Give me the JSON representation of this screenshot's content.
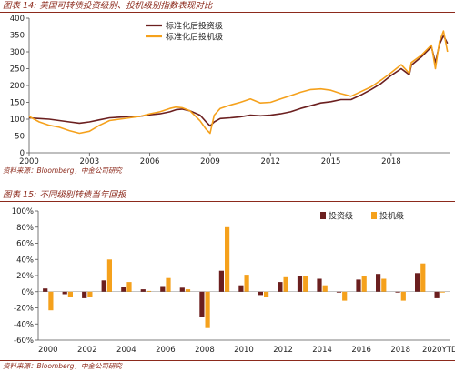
{
  "figure14": {
    "title": "图表 14: 美国可转债投资级别、投机级别指数表现对比",
    "source": "资料来源：Bloomberg，中金公司研究"
  },
  "figure15": {
    "title": "图表 15: 不同级别转债当年回报",
    "source": "资料来源：Bloomberg，中金公司研究"
  },
  "colors": {
    "investment_grade": "#6b1f1f",
    "speculative_grade": "#f5a11c",
    "frame": "#8c2a1c"
  },
  "chart_data": [
    {
      "type": "line",
      "title": "",
      "xlabel": "",
      "ylabel": "",
      "xlim": [
        2000,
        2020.9
      ],
      "ylim": [
        0,
        400
      ],
      "x_ticks": [
        "2000",
        "2003",
        "2006",
        "2009",
        "2012",
        "2015",
        "2018"
      ],
      "x_tick_values": [
        2000,
        2003,
        2006,
        2009,
        2012,
        2015,
        2018
      ],
      "y_ticks": [
        "0",
        "50",
        "100",
        "150",
        "200",
        "250",
        "300",
        "350",
        "400"
      ],
      "y_tick_values": [
        0,
        50,
        100,
        150,
        200,
        250,
        300,
        350,
        400
      ],
      "grid": false,
      "legend_position": "top-center",
      "series": [
        {
          "name": "标准化后投资级",
          "x": [
            2000,
            2000.5,
            2001,
            2001.5,
            2002,
            2002.5,
            2003,
            2003.5,
            2004,
            2004.5,
            2005,
            2005.5,
            2006,
            2006.5,
            2007,
            2007.3,
            2007.6,
            2008,
            2008.5,
            2008.8,
            2009,
            2009.2,
            2009.5,
            2010,
            2010.5,
            2011,
            2011.5,
            2012,
            2012.5,
            2013,
            2013.5,
            2014,
            2014.5,
            2015,
            2015.5,
            2016,
            2016.5,
            2017,
            2017.5,
            2018,
            2018.5,
            2018.9,
            2019,
            2019.5,
            2020,
            2020.2,
            2020.4,
            2020.6,
            2020.8
          ],
          "values": [
            104,
            102,
            100,
            96,
            92,
            88,
            92,
            98,
            104,
            106,
            108,
            108,
            113,
            116,
            122,
            128,
            130,
            125,
            112,
            92,
            80,
            92,
            102,
            104,
            107,
            112,
            110,
            112,
            116,
            122,
            132,
            140,
            148,
            152,
            158,
            158,
            172,
            188,
            206,
            230,
            250,
            232,
            260,
            285,
            315,
            268,
            322,
            348,
            325
          ]
        },
        {
          "name": "标准化后投机级",
          "x": [
            2000,
            2000.5,
            2001,
            2001.5,
            2002,
            2002.5,
            2003,
            2003.5,
            2004,
            2004.5,
            2005,
            2005.5,
            2006,
            2006.5,
            2007,
            2007.3,
            2007.6,
            2008,
            2008.5,
            2008.8,
            2009,
            2009.2,
            2009.5,
            2010,
            2010.5,
            2011,
            2011.5,
            2012,
            2012.5,
            2013,
            2013.5,
            2014,
            2014.5,
            2015,
            2015.5,
            2016,
            2016.5,
            2017,
            2017.5,
            2018,
            2018.5,
            2018.9,
            2019,
            2019.5,
            2020,
            2020.2,
            2020.4,
            2020.6,
            2020.8
          ],
          "values": [
            108,
            92,
            82,
            76,
            66,
            58,
            64,
            82,
            96,
            100,
            104,
            108,
            116,
            122,
            132,
            136,
            134,
            125,
            95,
            70,
            58,
            112,
            132,
            142,
            150,
            160,
            148,
            150,
            160,
            170,
            180,
            188,
            190,
            186,
            176,
            168,
            182,
            196,
            216,
            238,
            262,
            236,
            268,
            290,
            320,
            250,
            330,
            362,
            300
          ]
        }
      ]
    },
    {
      "type": "bar",
      "title": "",
      "xlabel": "",
      "ylabel": "",
      "ylim": [
        -60,
        100
      ],
      "y_ticks": [
        "100%",
        "80%",
        "60%",
        "40%",
        "20%",
        "0%",
        "-20%",
        "-40%",
        "-60%"
      ],
      "y_tick_values": [
        100,
        80,
        60,
        40,
        20,
        0,
        -20,
        -40,
        -60
      ],
      "categories": [
        "2000",
        "2001",
        "2002",
        "2003",
        "2004",
        "2005",
        "2006",
        "2007",
        "2008",
        "2009",
        "2010",
        "2011",
        "2012",
        "2013",
        "2014",
        "2015",
        "2016",
        "2017",
        "2018",
        "2019",
        "2020YTD"
      ],
      "x_tick_labels": [
        "2000",
        "",
        "2002",
        "",
        "2004",
        "",
        "2006",
        "",
        "2008",
        "",
        "2010",
        "",
        "2012",
        "",
        "2014",
        "",
        "2016",
        "",
        "2018",
        "",
        "2020YTD"
      ],
      "grid": false,
      "legend_position": "top-right",
      "series": [
        {
          "name": "投资级",
          "values": [
            4,
            -3,
            -8,
            14,
            6,
            3,
            7,
            5,
            -31,
            26,
            8,
            -4,
            12,
            19,
            16,
            -1,
            15,
            22,
            -1,
            23,
            -8
          ]
        },
        {
          "name": "投机级",
          "values": [
            -23,
            -7,
            -7,
            40,
            12,
            1,
            17,
            3,
            -45,
            80,
            21,
            -6,
            18,
            20,
            8,
            -11,
            20,
            16,
            -11,
            35,
            -1
          ]
        }
      ]
    }
  ]
}
